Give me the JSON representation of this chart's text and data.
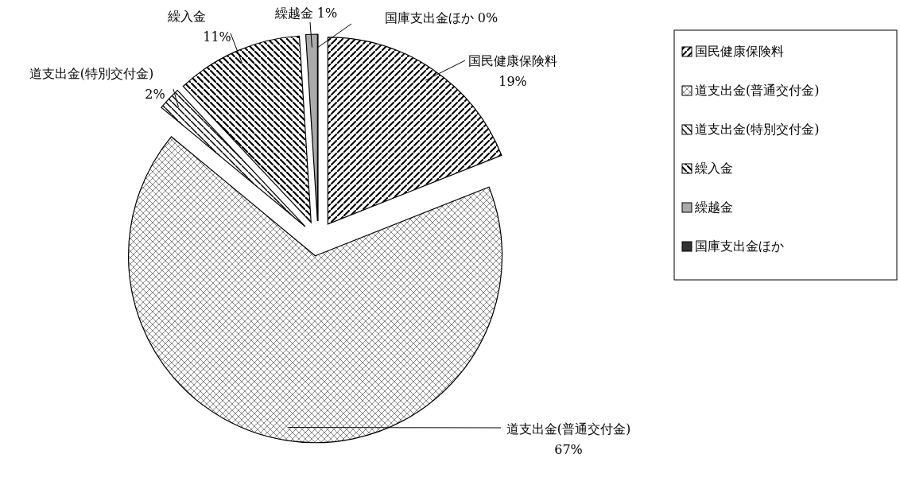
{
  "chart_data": {
    "type": "pie",
    "categories": [
      "国民健康保険料",
      "道支出金(普通交付金)",
      "道支出金(特別交付金)",
      "繰入金",
      "繰越金",
      "国庫支出金ほか"
    ],
    "values": [
      19,
      67,
      2,
      11,
      1,
      0
    ],
    "value_labels": [
      "19%",
      "67%",
      "2%",
      "11%",
      "1%",
      "0%"
    ],
    "legend": "right"
  }
}
